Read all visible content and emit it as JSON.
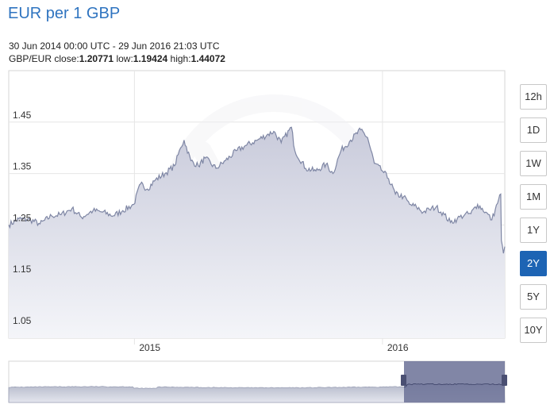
{
  "header": {
    "title": "EUR per 1 GBP",
    "range_text": "30 Jun 2014 00:00 UTC - 29 Jun 2016 21:03 UTC",
    "pair_label": "GBP/EUR",
    "close_label": "close:",
    "close_value": "1.20771",
    "low_label": "low:",
    "low_value": "1.19424",
    "high_label": "high:",
    "high_value": "1.44072"
  },
  "periods": [
    {
      "label": "12h",
      "active": false
    },
    {
      "label": "1D",
      "active": false
    },
    {
      "label": "1W",
      "active": false
    },
    {
      "label": "1M",
      "active": false
    },
    {
      "label": "1Y",
      "active": false
    },
    {
      "label": "2Y",
      "active": true
    },
    {
      "label": "5Y",
      "active": false
    },
    {
      "label": "10Y",
      "active": false
    }
  ],
  "colors": {
    "line": "#7e86a4",
    "area_top": "#c9cbdb",
    "area_bottom": "#f4f5f9",
    "grid": "#e6e6e6",
    "nav_selection": "#6b7196",
    "active_button": "#1d64b4",
    "title": "#2f74c0"
  },
  "chart_data": {
    "type": "area",
    "title": "EUR per 1 GBP",
    "xlabel": "",
    "ylabel": "",
    "x_ticks": [
      "2015",
      "2016"
    ],
    "y_ticks": [
      "1.45",
      "1.35",
      "1.25",
      "1.15",
      "1.05"
    ],
    "ylim": [
      1.03,
      1.55
    ],
    "grid": true,
    "series": [
      {
        "name": "GBP/EUR",
        "points": [
          [
            "2014-06-30",
            1.25
          ],
          [
            "2014-07-15",
            1.262
          ],
          [
            "2014-08-01",
            1.26
          ],
          [
            "2014-08-15",
            1.252
          ],
          [
            "2014-09-01",
            1.268
          ],
          [
            "2014-09-15",
            1.27
          ],
          [
            "2014-10-01",
            1.282
          ],
          [
            "2014-10-15",
            1.265
          ],
          [
            "2014-11-01",
            1.278
          ],
          [
            "2014-11-15",
            1.275
          ],
          [
            "2014-12-01",
            1.268
          ],
          [
            "2014-12-15",
            1.278
          ],
          [
            "2014-12-31",
            1.29
          ],
          [
            "2015-01-10",
            1.33
          ],
          [
            "2015-01-20",
            1.32
          ],
          [
            "2015-02-01",
            1.338
          ],
          [
            "2015-02-15",
            1.35
          ],
          [
            "2015-03-01",
            1.365
          ],
          [
            "2015-03-10",
            1.4
          ],
          [
            "2015-03-15",
            1.415
          ],
          [
            "2015-03-25",
            1.375
          ],
          [
            "2015-04-05",
            1.365
          ],
          [
            "2015-04-15",
            1.38
          ],
          [
            "2015-05-01",
            1.36
          ],
          [
            "2015-05-15",
            1.375
          ],
          [
            "2015-06-01",
            1.395
          ],
          [
            "2015-06-15",
            1.405
          ],
          [
            "2015-07-01",
            1.415
          ],
          [
            "2015-07-15",
            1.425
          ],
          [
            "2015-07-25",
            1.432
          ],
          [
            "2015-08-05",
            1.41
          ],
          [
            "2015-08-20",
            1.44
          ],
          [
            "2015-08-25",
            1.395
          ],
          [
            "2015-09-10",
            1.36
          ],
          [
            "2015-09-25",
            1.355
          ],
          [
            "2015-10-10",
            1.368
          ],
          [
            "2015-10-20",
            1.35
          ],
          [
            "2015-11-01",
            1.395
          ],
          [
            "2015-11-15",
            1.415
          ],
          [
            "2015-11-30",
            1.435
          ],
          [
            "2015-12-10",
            1.42
          ],
          [
            "2015-12-20",
            1.37
          ],
          [
            "2016-01-01",
            1.355
          ],
          [
            "2016-01-10",
            1.34
          ],
          [
            "2016-01-20",
            1.31
          ],
          [
            "2016-02-01",
            1.305
          ],
          [
            "2016-02-10",
            1.29
          ],
          [
            "2016-02-20",
            1.285
          ],
          [
            "2016-03-01",
            1.275
          ],
          [
            "2016-03-10",
            1.28
          ],
          [
            "2016-03-20",
            1.285
          ],
          [
            "2016-04-01",
            1.27
          ],
          [
            "2016-04-10",
            1.255
          ],
          [
            "2016-04-20",
            1.262
          ],
          [
            "2016-05-01",
            1.27
          ],
          [
            "2016-05-10",
            1.272
          ],
          [
            "2016-05-20",
            1.29
          ],
          [
            "2016-06-01",
            1.275
          ],
          [
            "2016-06-10",
            1.26
          ],
          [
            "2016-06-15",
            1.28
          ],
          [
            "2016-06-20",
            1.3
          ],
          [
            "2016-06-23",
            1.31
          ],
          [
            "2016-06-24",
            1.22
          ],
          [
            "2016-06-27",
            1.195
          ],
          [
            "2016-06-29",
            1.208
          ]
        ]
      }
    ]
  }
}
